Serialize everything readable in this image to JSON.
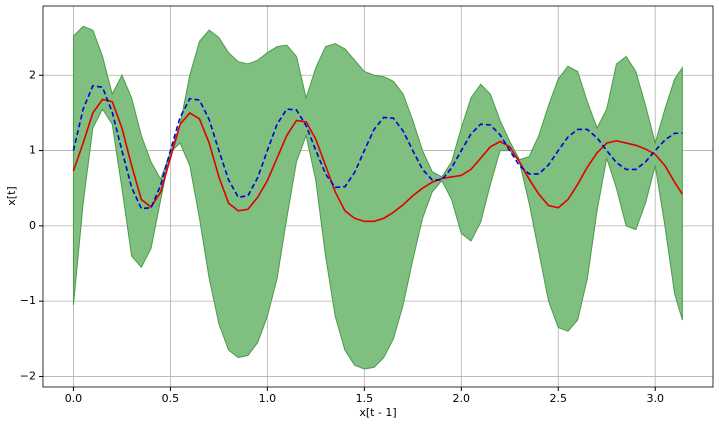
{
  "chart_data": {
    "type": "line",
    "xlabel": "x[t - 1]",
    "ylabel": "x[t]",
    "x": [
      0,
      0.05,
      0.1,
      0.15,
      0.2,
      0.25,
      0.3,
      0.35,
      0.4,
      0.45,
      0.5,
      0.55,
      0.6,
      0.65,
      0.7,
      0.75,
      0.8,
      0.85,
      0.9,
      0.95,
      1.0,
      1.05,
      1.1,
      1.15,
      1.2,
      1.25,
      1.3,
      1.35,
      1.4,
      1.45,
      1.5,
      1.55,
      1.6,
      1.65,
      1.7,
      1.75,
      1.8,
      1.85,
      1.9,
      1.95,
      2.0,
      2.05,
      2.1,
      2.15,
      2.2,
      2.25,
      2.3,
      2.35,
      2.4,
      2.45,
      2.5,
      2.55,
      2.6,
      2.65,
      2.7,
      2.75,
      2.8,
      2.85,
      2.9,
      2.95,
      3.0,
      3.05,
      3.1,
      3.14
    ],
    "band": {
      "color": "#7fbf7f",
      "edge": "#4c9a4c",
      "upper": [
        2.52,
        2.65,
        2.6,
        2.25,
        1.75,
        2.0,
        1.7,
        1.2,
        0.85,
        0.62,
        0.98,
        1.35,
        2.0,
        2.45,
        2.6,
        2.5,
        2.3,
        2.18,
        2.15,
        2.2,
        2.3,
        2.38,
        2.4,
        2.25,
        1.7,
        2.1,
        2.38,
        2.42,
        2.35,
        2.2,
        2.05,
        2.0,
        1.98,
        1.92,
        1.75,
        1.4,
        1.0,
        0.72,
        0.65,
        0.85,
        1.3,
        1.7,
        1.88,
        1.75,
        1.4,
        1.12,
        0.88,
        0.92,
        1.2,
        1.6,
        1.95,
        2.12,
        2.05,
        1.65,
        1.3,
        1.55,
        2.15,
        2.25,
        2.05,
        1.6,
        1.1,
        1.55,
        1.95,
        2.1
      ],
      "lower": [
        -1.05,
        0.3,
        1.3,
        1.55,
        1.35,
        0.5,
        -0.4,
        -0.55,
        -0.3,
        0.35,
        0.98,
        1.1,
        0.8,
        0.1,
        -0.7,
        -1.3,
        -1.65,
        -1.75,
        -1.72,
        -1.55,
        -1.2,
        -0.7,
        0.1,
        0.85,
        1.2,
        0.6,
        -0.4,
        -1.2,
        -1.65,
        -1.85,
        -1.9,
        -1.88,
        -1.75,
        -1.5,
        -1.05,
        -0.45,
        0.1,
        0.45,
        0.6,
        0.35,
        -0.1,
        -0.2,
        0.05,
        0.55,
        1.0,
        1.0,
        0.85,
        0.3,
        -0.35,
        -1.0,
        -1.35,
        -1.4,
        -1.25,
        -0.7,
        0.2,
        0.9,
        0.5,
        0.0,
        -0.05,
        0.3,
        0.8,
        0.0,
        -0.9,
        -1.25
      ]
    },
    "series": [
      {
        "color": "#e00000",
        "dashed": false,
        "values": [
          0.73,
          1.1,
          1.5,
          1.68,
          1.65,
          1.3,
          0.8,
          0.35,
          0.25,
          0.45,
          0.9,
          1.35,
          1.5,
          1.42,
          1.1,
          0.65,
          0.3,
          0.2,
          0.22,
          0.38,
          0.6,
          0.9,
          1.2,
          1.4,
          1.38,
          1.15,
          0.8,
          0.45,
          0.2,
          0.1,
          0.06,
          0.06,
          0.1,
          0.18,
          0.28,
          0.4,
          0.5,
          0.58,
          0.63,
          0.65,
          0.67,
          0.75,
          0.9,
          1.05,
          1.12,
          1.05,
          0.85,
          0.62,
          0.42,
          0.27,
          0.24,
          0.35,
          0.55,
          0.78,
          0.97,
          1.1,
          1.13,
          1.1,
          1.07,
          1.02,
          0.95,
          0.8,
          0.58,
          0.42
        ]
      },
      {
        "color": "#0000dd",
        "dashed": true,
        "values": [
          1.0,
          1.55,
          1.86,
          1.84,
          1.51,
          1.0,
          0.51,
          0.23,
          0.24,
          0.54,
          1.0,
          1.44,
          1.69,
          1.67,
          1.41,
          1.0,
          0.61,
          0.38,
          0.4,
          0.64,
          1.0,
          1.35,
          1.55,
          1.54,
          1.33,
          1.0,
          0.69,
          0.51,
          0.52,
          0.71,
          1.0,
          1.28,
          1.44,
          1.43,
          1.26,
          1.0,
          0.75,
          0.61,
          0.61,
          0.77,
          1.0,
          1.22,
          1.35,
          1.34,
          1.21,
          1.0,
          0.8,
          0.69,
          0.69,
          0.81,
          1.0,
          1.18,
          1.28,
          1.28,
          1.17,
          1.0,
          0.84,
          0.75,
          0.75,
          0.85,
          1.0,
          1.14,
          1.23,
          1.23
        ]
      }
    ],
    "xlim": [
      -0.157,
      3.298
    ],
    "ylim": [
      -2.14,
      2.92
    ],
    "xticks": [
      {
        "value": 0,
        "label": "0.0"
      },
      {
        "value": 0.5,
        "label": "0.5"
      },
      {
        "value": 1,
        "label": "1.0"
      },
      {
        "value": 1.5,
        "label": "1.5"
      },
      {
        "value": 2,
        "label": "2.0"
      },
      {
        "value": 2.5,
        "label": "2.5"
      },
      {
        "value": 3,
        "label": "3.0"
      }
    ],
    "yticks": [
      {
        "value": -2,
        "label": "−2"
      },
      {
        "value": -1,
        "label": "−1"
      },
      0,
      1,
      2
    ],
    "grid": true
  }
}
